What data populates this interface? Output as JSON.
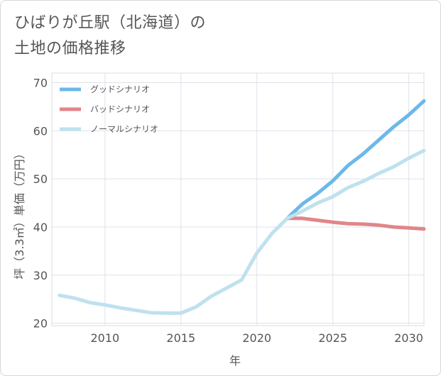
{
  "title_lines": [
    "ひばりが丘駅（北海道）の",
    "土地の価格推移"
  ],
  "chart_data": {
    "type": "line",
    "title": "ひばりが丘駅（北海道）の 土地の価格推移",
    "xlabel": "年",
    "ylabel": "坪（3.3㎡）単価（万円）",
    "xlim": [
      2006.5,
      2031
    ],
    "ylim": [
      19.5,
      72
    ],
    "xticks": [
      2010,
      2015,
      2020,
      2025,
      2030
    ],
    "yticks": [
      20,
      30,
      40,
      50,
      60,
      70
    ],
    "grid": true,
    "legend_position": "top-left",
    "series": [
      {
        "name": "グッドシナリオ",
        "color": "#6cb8ea",
        "x": [
          2022,
          2023,
          2024,
          2025,
          2026,
          2027,
          2028,
          2029,
          2030,
          2031
        ],
        "y": [
          41.8,
          44.8,
          47.0,
          49.6,
          52.8,
          55.2,
          58.0,
          60.8,
          63.3,
          66.2
        ]
      },
      {
        "name": "バッドシナリオ",
        "color": "#e0868a",
        "x": [
          2022,
          2023,
          2024,
          2025,
          2026,
          2027,
          2028,
          2029,
          2030,
          2031
        ],
        "y": [
          41.8,
          41.8,
          41.4,
          41.0,
          40.7,
          40.6,
          40.4,
          40.0,
          39.8,
          39.6
        ]
      },
      {
        "name": "ノーマルシナリオ",
        "color": "#bfe1ee",
        "x": [
          2007,
          2008,
          2009,
          2010,
          2011,
          2012,
          2013,
          2014,
          2015,
          2016,
          2017,
          2018,
          2019,
          2020,
          2021,
          2022,
          2023,
          2024,
          2025,
          2026,
          2027,
          2028,
          2029,
          2030,
          2031
        ],
        "y": [
          25.8,
          25.2,
          24.3,
          23.8,
          23.2,
          22.7,
          22.2,
          22.1,
          22.1,
          23.4,
          25.6,
          27.3,
          29.0,
          34.6,
          38.7,
          41.8,
          43.3,
          45.0,
          46.3,
          48.2,
          49.5,
          51.1,
          52.5,
          54.3,
          55.9
        ]
      }
    ]
  }
}
